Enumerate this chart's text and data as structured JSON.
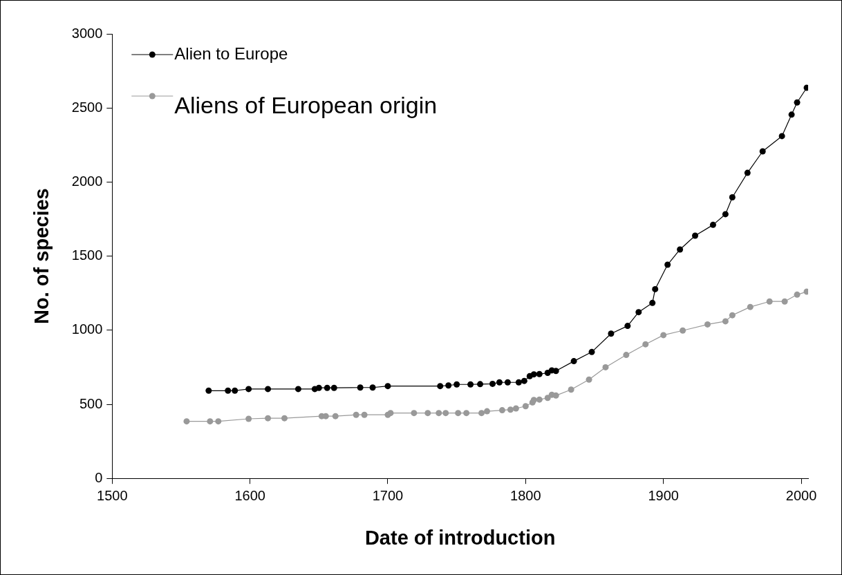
{
  "chart_data": {
    "type": "line",
    "xlabel": "Date of introduction",
    "ylabel": "No. of species",
    "xlim": [
      1500,
      2005
    ],
    "xticks": [
      1500,
      1600,
      1700,
      1800,
      1900,
      2000
    ],
    "ylim": [
      0,
      3000
    ],
    "yticks": [
      0,
      500,
      1000,
      1500,
      2000,
      2500,
      3000
    ],
    "grid": false,
    "legend": "top left",
    "marker": "circle",
    "line_style": "solid",
    "series": [
      {
        "name": "Alien to Europe",
        "color": "#000000",
        "x": [
          1570,
          1584,
          1589,
          1599,
          1613,
          1635,
          1647,
          1650,
          1656,
          1661,
          1680,
          1689,
          1700,
          1738,
          1744,
          1750,
          1760,
          1767,
          1776,
          1781,
          1787,
          1795,
          1799,
          1803,
          1806,
          1810,
          1816,
          1819,
          1822,
          1835,
          1848,
          1862,
          1874,
          1882,
          1892,
          1894,
          1903,
          1912,
          1923,
          1936,
          1945,
          1950,
          1961,
          1972,
          1986,
          1993,
          1997,
          2004
        ],
        "values": [
          592,
          592,
          592,
          603,
          603,
          603,
          603,
          611,
          611,
          611,
          613,
          613,
          623,
          623,
          627,
          634,
          634,
          636,
          638,
          648,
          648,
          648,
          658,
          690,
          702,
          704,
          712,
          729,
          725,
          791,
          853,
          977,
          1029,
          1122,
          1184,
          1277,
          1442,
          1545,
          1638,
          1711,
          1783,
          1897,
          2062,
          2207,
          2310,
          2455,
          2537,
          2636
        ]
      },
      {
        "name": "Aliens of European origin",
        "color": "#999999",
        "x": [
          1554,
          1571,
          1577,
          1599,
          1613,
          1625,
          1652,
          1655,
          1662,
          1677,
          1683,
          1700,
          1702,
          1719,
          1729,
          1737,
          1742,
          1751,
          1757,
          1768,
          1772,
          1783,
          1789,
          1793,
          1800,
          1805,
          1806,
          1810,
          1816,
          1819,
          1822,
          1833,
          1846,
          1858,
          1873,
          1887,
          1900,
          1914,
          1932,
          1945,
          1950,
          1963,
          1977,
          1988,
          1997,
          2004
        ],
        "values": [
          385,
          385,
          385,
          402,
          406,
          406,
          420,
          420,
          420,
          429,
          429,
          429,
          441,
          441,
          441,
          441,
          441,
          441,
          441,
          441,
          453,
          460,
          464,
          472,
          487,
          513,
          529,
          532,
          543,
          564,
          559,
          599,
          667,
          750,
          833,
          905,
          967,
          998,
          1039,
          1060,
          1101,
          1157,
          1194,
          1194,
          1240,
          1260
        ]
      }
    ]
  }
}
